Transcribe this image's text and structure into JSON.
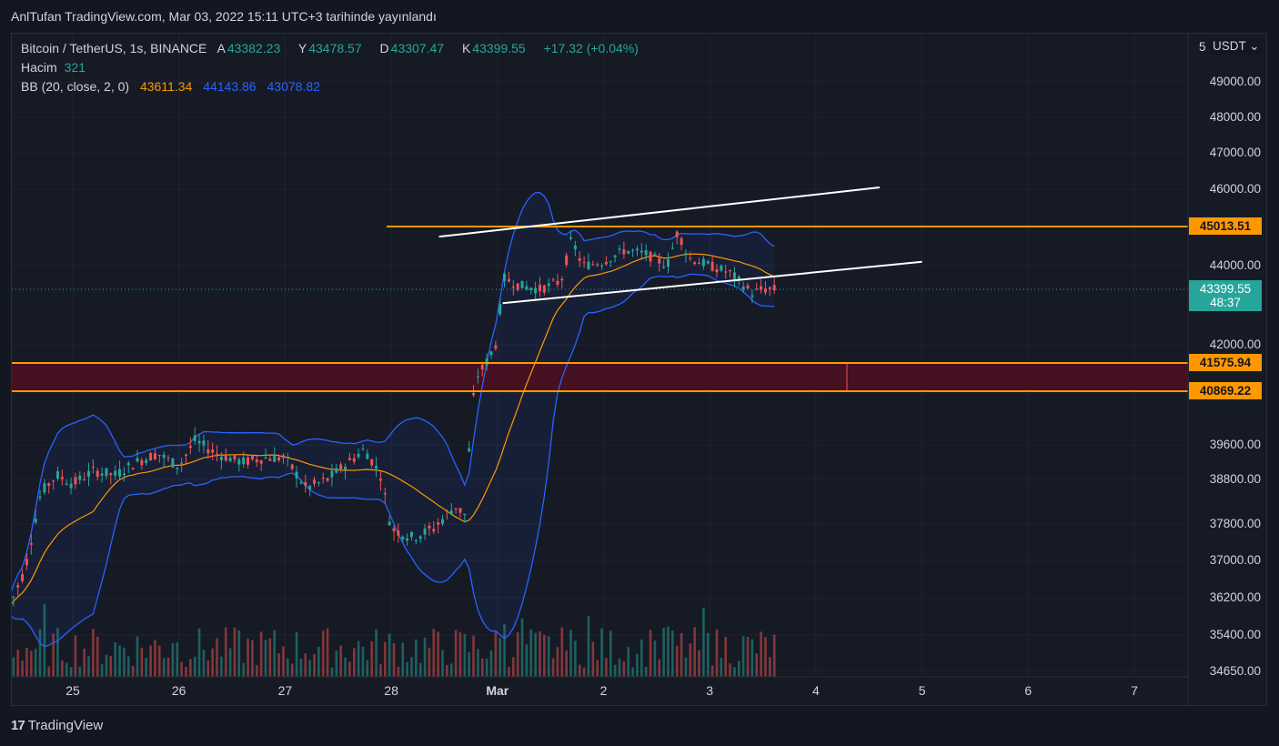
{
  "header": {
    "published": "AnlTufan TradingView.com, Mar 03, 2022 15:11 UTC+3 tarihinde yayınlandı"
  },
  "legend": {
    "symbol": "Bitcoin / TetherUS, 1s, BINANCE",
    "open_label": "A",
    "open": "43382.23",
    "high_label": "Y",
    "high": "43478.57",
    "low_label": "D",
    "low": "43307.47",
    "close_label": "K",
    "close": "43399.55",
    "change": "+17.32 (+0.04%)",
    "volume_label": "Hacim",
    "volume": "321",
    "bb_label": "BB (20, close, 2, 0)",
    "bb_basis": "43611.34",
    "bb_upper": "44143.86",
    "bb_lower": "43078.82"
  },
  "price_axis": {
    "currency": "USDT",
    "ticks": [
      "5",
      "49000.00",
      "48000.00",
      "47000.00",
      "46000.00",
      "44000.00",
      "42000.00",
      "39600.00",
      "38800.00",
      "37800.00",
      "37000.00",
      "36200.00",
      "35400.00",
      "34650.00"
    ],
    "badges": [
      {
        "text": "45013.51",
        "color": "#ff9800",
        "price": 45013.51
      },
      {
        "text": "41575.94",
        "color": "#ff9800",
        "price": 41575.94
      },
      {
        "text": "40869.22",
        "color": "#ff9800",
        "price": 40869.22
      },
      {
        "text": "43399.55",
        "sub": "48:37",
        "color": "#26a69a",
        "price": 43399.55
      }
    ]
  },
  "time_axis": {
    "labels": [
      "25",
      "26",
      "27",
      "28",
      "Mar",
      "2",
      "3",
      "4",
      "5",
      "6",
      "7"
    ]
  },
  "footer": {
    "brand": "TradingView",
    "brand_mark": "17"
  },
  "colors": {
    "up": "#26a69a",
    "down": "#ef5350",
    "bb_basis": "#ff9800",
    "bb_band": "#2962ff",
    "horizontal": "#ff9800",
    "trend": "#ffffff",
    "zone_fill": "#4a0f1f"
  },
  "chart_data": {
    "type": "candlestick",
    "symbol": "Bitcoin / TetherUS",
    "interval": "1s",
    "exchange": "BINANCE",
    "x_ticks": [
      "25",
      "26",
      "27",
      "28",
      "Mar",
      "2",
      "3",
      "4",
      "5",
      "6",
      "7"
    ],
    "y_ticks": [
      49000,
      48000,
      47000,
      46000,
      44000,
      42000,
      39600,
      38800,
      37800,
      37000,
      36200,
      35400,
      34650
    ],
    "horizontal_levels": [
      45013.51,
      41575.94,
      40869.22
    ],
    "supply_zone": [
      40869.22,
      41575.94
    ],
    "last_price": 43399.55,
    "bollinger": {
      "length": 20,
      "source": "close",
      "mult": 2,
      "offset": 0,
      "basis": 43611.34,
      "upper": 44143.86,
      "lower": 43078.82
    },
    "price_anchor": [
      {
        "day": 24.4,
        "price": 36000
      },
      {
        "day": 24.55,
        "price": 36800
      },
      {
        "day": 24.7,
        "price": 38500
      },
      {
        "day": 24.85,
        "price": 38900
      },
      {
        "day": 25.0,
        "price": 38700
      },
      {
        "day": 25.2,
        "price": 39000
      },
      {
        "day": 25.4,
        "price": 38900
      },
      {
        "day": 25.6,
        "price": 39200
      },
      {
        "day": 25.8,
        "price": 39400
      },
      {
        "day": 26.0,
        "price": 39100
      },
      {
        "day": 26.15,
        "price": 39700
      },
      {
        "day": 26.35,
        "price": 39400
      },
      {
        "day": 26.6,
        "price": 39200
      },
      {
        "day": 26.8,
        "price": 39300
      },
      {
        "day": 27.0,
        "price": 39300
      },
      {
        "day": 27.2,
        "price": 38600
      },
      {
        "day": 27.4,
        "price": 38800
      },
      {
        "day": 27.6,
        "price": 39200
      },
      {
        "day": 27.75,
        "price": 39500
      },
      {
        "day": 27.9,
        "price": 38900
      },
      {
        "day": 28.0,
        "price": 37700
      },
      {
        "day": 28.2,
        "price": 37500
      },
      {
        "day": 28.4,
        "price": 37700
      },
      {
        "day": 28.6,
        "price": 38200
      },
      {
        "day": 28.7,
        "price": 38000
      },
      {
        "day": 28.75,
        "price": 40200
      },
      {
        "day": 28.8,
        "price": 41200
      },
      {
        "day": 28.9,
        "price": 41600
      },
      {
        "day": 29.0,
        "price": 42100
      },
      {
        "day": 29.05,
        "price": 43700
      },
      {
        "day": 29.2,
        "price": 43500
      },
      {
        "day": 29.4,
        "price": 43400
      },
      {
        "day": 29.6,
        "price": 43600
      },
      {
        "day": 29.7,
        "price": 44700
      },
      {
        "day": 29.8,
        "price": 44000
      },
      {
        "day": 30.0,
        "price": 44100
      },
      {
        "day": 30.2,
        "price": 44400
      },
      {
        "day": 30.4,
        "price": 44300
      },
      {
        "day": 30.6,
        "price": 44000
      },
      {
        "day": 30.7,
        "price": 44900
      },
      {
        "day": 30.8,
        "price": 44200
      },
      {
        "day": 31.0,
        "price": 44000
      },
      {
        "day": 31.2,
        "price": 43800
      },
      {
        "day": 31.4,
        "price": 43300
      },
      {
        "day": 31.5,
        "price": 43400
      },
      {
        "day": 31.6,
        "price": 43400
      }
    ],
    "trendlines": [
      {
        "from": {
          "day": 28.45,
          "price": 44750
        },
        "to": {
          "day": 32.6,
          "price": 46050
        }
      },
      {
        "from": {
          "day": 29.05,
          "price": 43050
        },
        "to": {
          "day": 33.0,
          "price": 44100
        }
      }
    ]
  }
}
